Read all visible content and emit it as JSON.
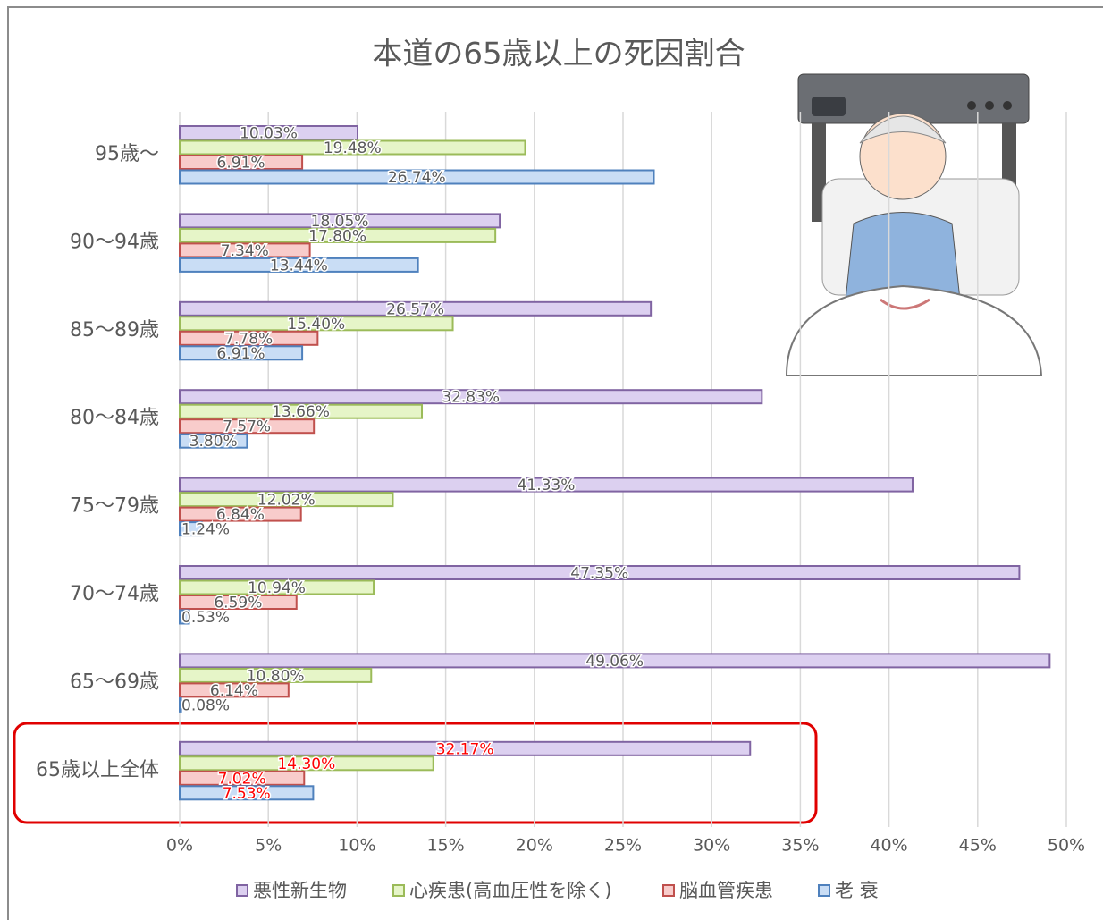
{
  "chart_data": {
    "type": "bar",
    "orientation": "horizontal",
    "title": "本道の65歳以上の死因割合",
    "categories": [
      "95歳〜",
      "90〜94歳",
      "85〜89歳",
      "80〜84歳",
      "75〜79歳",
      "70〜74歳",
      "65〜69歳",
      "65歳以上全体"
    ],
    "series": [
      {
        "name": "悪性新生物",
        "color": "#8064a2",
        "fill": "#dcd0f0",
        "values": [
          10.03,
          18.05,
          26.57,
          32.83,
          41.33,
          47.35,
          49.06,
          32.17
        ],
        "value_labels": [
          "10.03%",
          "18.05%",
          "26.57%",
          "32.83%",
          "41.33%",
          "47.35%",
          "49.06%",
          "32.17%"
        ]
      },
      {
        "name": "心疾患(高血圧性を除く)",
        "color": "#9bbb59",
        "fill": "#e6f5c8",
        "values": [
          19.48,
          17.8,
          15.4,
          13.66,
          12.02,
          10.94,
          10.8,
          14.3
        ],
        "value_labels": [
          "19.48%",
          "17.80%",
          "15.40%",
          "13.66%",
          "12.02%",
          "10.94%",
          "10.80%",
          "14.30%"
        ]
      },
      {
        "name": "脳血管疾患",
        "color": "#c0504d",
        "fill": "#f8cccb",
        "values": [
          6.91,
          7.34,
          7.78,
          7.57,
          6.84,
          6.59,
          6.14,
          7.02
        ],
        "value_labels": [
          "6.91%",
          "7.34%",
          "7.78%",
          "7.57%",
          "6.84%",
          "6.59%",
          "6.14%",
          "7.02%"
        ]
      },
      {
        "name": "老 衰",
        "color": "#4f81bd",
        "fill": "#c9ddf5",
        "values": [
          26.74,
          13.44,
          6.91,
          3.8,
          1.24,
          0.53,
          0.08,
          7.53
        ],
        "value_labels": [
          "26.74%",
          "13.44%",
          "6.91%",
          "3.80%",
          "1.24%",
          "0.53%",
          "0.08%",
          "7.53%"
        ]
      }
    ],
    "xlim": [
      0,
      50
    ],
    "xticks": [
      {
        "value": 0,
        "label": "0%"
      },
      {
        "value": 5,
        "label": "5%"
      },
      {
        "value": 10,
        "label": "10%"
      },
      {
        "value": 15,
        "label": "15%"
      },
      {
        "value": 20,
        "label": "20%"
      },
      {
        "value": 25,
        "label": "25%"
      },
      {
        "value": 30,
        "label": "30%"
      },
      {
        "value": 35,
        "label": "35%"
      },
      {
        "value": 40,
        "label": "40%"
      },
      {
        "value": 45,
        "label": "45%"
      },
      {
        "value": 50,
        "label": "50%"
      }
    ],
    "grid": true,
    "legend": "bottom",
    "highlight_color": "#ff0000"
  }
}
